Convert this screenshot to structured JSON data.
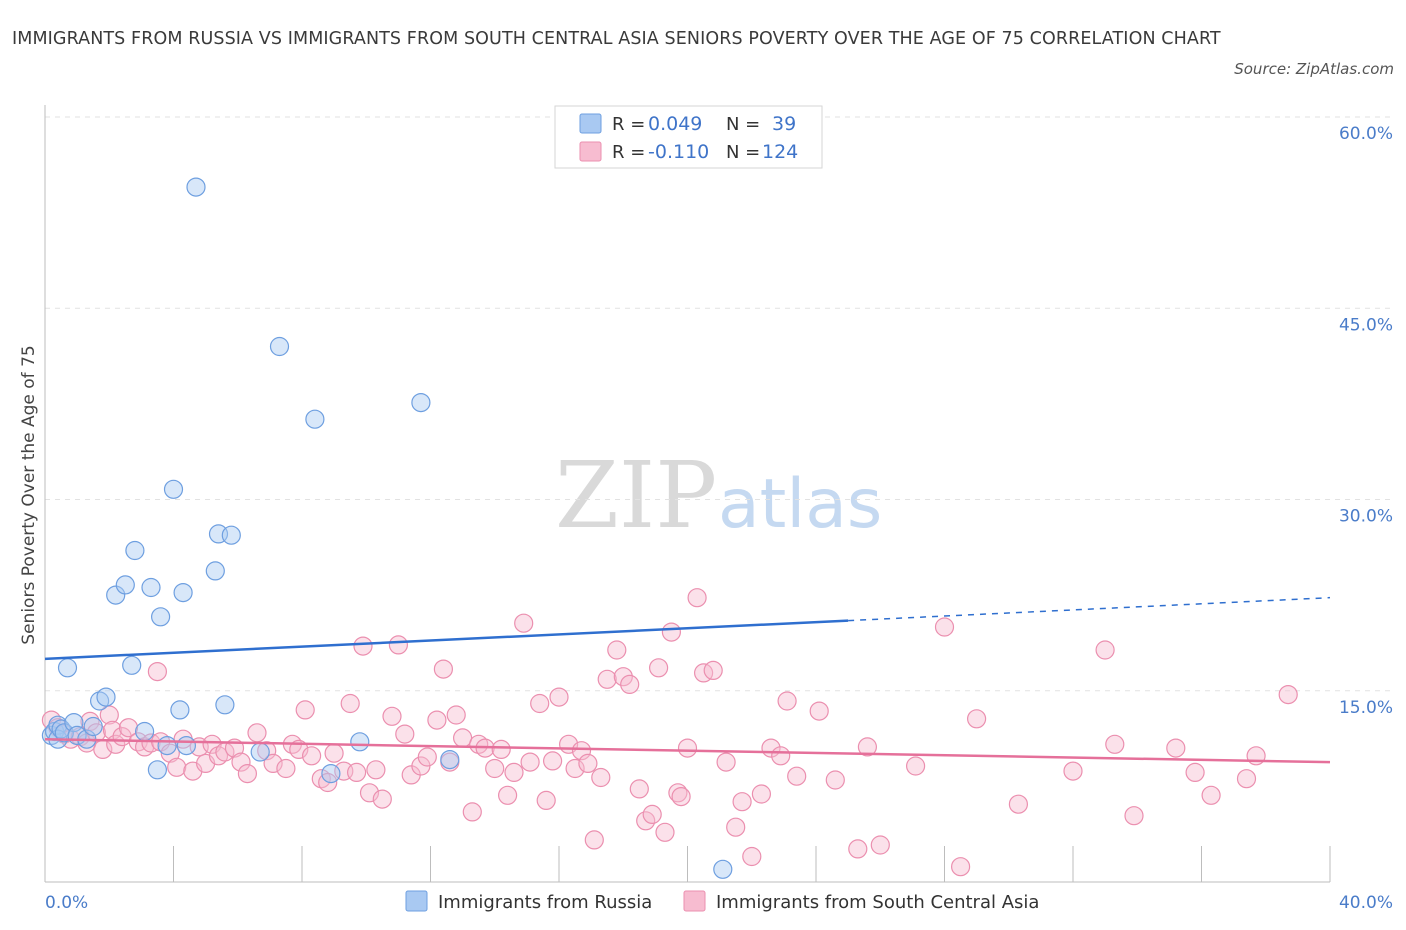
{
  "header": {
    "title": "IMMIGRANTS FROM RUSSIA VS IMMIGRANTS FROM SOUTH CENTRAL ASIA SENIORS POVERTY OVER THE AGE OF 75 CORRELATION CHART",
    "source": "Source: ZipAtlas.com"
  },
  "watermark": {
    "zip": "ZIP",
    "atlas": "atlas"
  },
  "legend": {
    "r_label": "R =",
    "n_label": "N =",
    "rows": [
      {
        "r": "0.049",
        "n": "39",
        "color": "#a9c9f2"
      },
      {
        "r": "-0.110",
        "n": "124",
        "color": "#f7bcd0"
      }
    ]
  },
  "colors": {
    "blue_fill": "#a9c9f2",
    "blue_stroke": "#6e9fe0",
    "blue_line": "#2f6fcf",
    "pink_fill": "#f7bcd0",
    "pink_stroke": "#eb8faf",
    "pink_line": "#e5709a"
  },
  "chart_data": {
    "type": "scatter",
    "title": "IMMIGRANTS FROM RUSSIA VS IMMIGRANTS FROM SOUTH CENTRAL ASIA SENIORS POVERTY OVER THE AGE OF 75 CORRELATION CHART",
    "xlabel": "",
    "ylabel": "Seniors Poverty Over the Age of 75",
    "xlim": [
      0,
      40
    ],
    "ylim": [
      0,
      60
    ],
    "x_tick_labels": [
      "0.0%",
      "40.0%"
    ],
    "y_tick_labels": [
      "15.0%",
      "30.0%",
      "45.0%",
      "60.0%"
    ],
    "y_ticks": [
      15,
      30,
      45,
      60
    ],
    "grid": true,
    "legend_position": "top-center",
    "series": [
      {
        "name": "Immigrants from Russia",
        "points": [
          [
            0.2,
            11.5
          ],
          [
            0.3,
            11.8
          ],
          [
            0.4,
            12.3
          ],
          [
            0.4,
            11.2
          ],
          [
            0.5,
            12.0
          ],
          [
            0.6,
            11.7
          ],
          [
            0.7,
            16.8
          ],
          [
            0.9,
            12.5
          ],
          [
            1.0,
            11.5
          ],
          [
            1.3,
            11.2
          ],
          [
            1.5,
            12.2
          ],
          [
            1.7,
            14.2
          ],
          [
            1.9,
            14.5
          ],
          [
            2.2,
            22.5
          ],
          [
            2.5,
            23.3
          ],
          [
            2.7,
            17.0
          ],
          [
            2.8,
            26.0
          ],
          [
            3.1,
            11.8
          ],
          [
            3.3,
            23.1
          ],
          [
            3.5,
            8.8
          ],
          [
            3.6,
            20.8
          ],
          [
            3.8,
            10.7
          ],
          [
            4.0,
            30.8
          ],
          [
            4.2,
            13.5
          ],
          [
            4.3,
            22.7
          ],
          [
            4.4,
            10.7
          ],
          [
            4.7,
            54.5
          ],
          [
            5.3,
            24.4
          ],
          [
            5.4,
            27.3
          ],
          [
            5.6,
            13.9
          ],
          [
            5.8,
            27.2
          ],
          [
            6.7,
            10.2
          ],
          [
            7.3,
            42.0
          ],
          [
            8.4,
            36.3
          ],
          [
            8.9,
            8.5
          ],
          [
            9.8,
            11.0
          ],
          [
            11.7,
            37.6
          ],
          [
            12.6,
            9.6
          ],
          [
            21.1,
            1.0
          ]
        ],
        "trend": {
          "x": [
            0,
            40
          ],
          "y": [
            17.5,
            22.3
          ]
        }
      },
      {
        "name": "Immigrants from South Central Asia",
        "points": [
          [
            0.2,
            12.7
          ],
          [
            0.4,
            12.1
          ],
          [
            0.6,
            11.6
          ],
          [
            0.8,
            11.2
          ],
          [
            1.1,
            11.4
          ],
          [
            1.3,
            10.9
          ],
          [
            1.4,
            12.6
          ],
          [
            1.6,
            11.7
          ],
          [
            1.8,
            10.4
          ],
          [
            2.0,
            13.1
          ],
          [
            2.1,
            11.9
          ],
          [
            2.2,
            10.8
          ],
          [
            2.4,
            11.4
          ],
          [
            2.6,
            12.1
          ],
          [
            2.9,
            11.0
          ],
          [
            3.1,
            10.6
          ],
          [
            3.3,
            10.9
          ],
          [
            3.5,
            16.5
          ],
          [
            3.6,
            11.0
          ],
          [
            3.9,
            10.1
          ],
          [
            4.1,
            9.0
          ],
          [
            4.3,
            11.2
          ],
          [
            4.6,
            8.7
          ],
          [
            4.8,
            10.6
          ],
          [
            5.0,
            9.3
          ],
          [
            5.2,
            10.8
          ],
          [
            5.4,
            9.9
          ],
          [
            5.6,
            10.2
          ],
          [
            5.9,
            10.5
          ],
          [
            6.1,
            9.4
          ],
          [
            6.3,
            8.5
          ],
          [
            6.6,
            11.7
          ],
          [
            6.9,
            10.3
          ],
          [
            7.1,
            9.3
          ],
          [
            7.5,
            8.9
          ],
          [
            7.7,
            10.8
          ],
          [
            7.9,
            10.4
          ],
          [
            8.1,
            13.5
          ],
          [
            8.3,
            9.9
          ],
          [
            8.6,
            8.1
          ],
          [
            8.8,
            7.8
          ],
          [
            9.0,
            10.1
          ],
          [
            9.3,
            8.7
          ],
          [
            9.5,
            14.0
          ],
          [
            9.7,
            8.6
          ],
          [
            9.9,
            18.5
          ],
          [
            10.1,
            7.0
          ],
          [
            10.3,
            8.8
          ],
          [
            10.5,
            6.5
          ],
          [
            10.8,
            13.0
          ],
          [
            11.0,
            18.6
          ],
          [
            11.2,
            11.6
          ],
          [
            11.4,
            8.4
          ],
          [
            11.7,
            9.1
          ],
          [
            11.9,
            9.8
          ],
          [
            12.2,
            12.7
          ],
          [
            12.4,
            16.7
          ],
          [
            12.6,
            9.4
          ],
          [
            12.8,
            13.1
          ],
          [
            13.0,
            11.3
          ],
          [
            13.3,
            5.5
          ],
          [
            13.5,
            10.8
          ],
          [
            13.7,
            10.5
          ],
          [
            14.0,
            8.9
          ],
          [
            14.2,
            10.4
          ],
          [
            14.4,
            6.8
          ],
          [
            14.6,
            8.6
          ],
          [
            14.9,
            20.3
          ],
          [
            15.1,
            9.4
          ],
          [
            15.4,
            14.0
          ],
          [
            15.6,
            6.4
          ],
          [
            15.8,
            9.5
          ],
          [
            16.0,
            14.5
          ],
          [
            16.3,
            10.8
          ],
          [
            16.5,
            8.9
          ],
          [
            16.7,
            10.3
          ],
          [
            16.9,
            9.3
          ],
          [
            17.1,
            3.3
          ],
          [
            17.3,
            8.2
          ],
          [
            17.5,
            15.9
          ],
          [
            17.8,
            18.2
          ],
          [
            18.0,
            16.1
          ],
          [
            18.2,
            15.5
          ],
          [
            18.5,
            7.3
          ],
          [
            18.7,
            4.8
          ],
          [
            18.9,
            5.3
          ],
          [
            19.1,
            16.8
          ],
          [
            19.3,
            3.9
          ],
          [
            19.5,
            19.6
          ],
          [
            19.7,
            7.0
          ],
          [
            19.8,
            6.7
          ],
          [
            20.0,
            10.5
          ],
          [
            20.3,
            22.3
          ],
          [
            20.5,
            16.4
          ],
          [
            20.8,
            16.6
          ],
          [
            21.2,
            9.4
          ],
          [
            21.5,
            4.3
          ],
          [
            21.7,
            6.3
          ],
          [
            22.0,
            2.0
          ],
          [
            22.3,
            6.9
          ],
          [
            22.6,
            10.5
          ],
          [
            22.9,
            9.9
          ],
          [
            23.1,
            14.2
          ],
          [
            23.4,
            8.3
          ],
          [
            24.1,
            13.4
          ],
          [
            24.6,
            8.0
          ],
          [
            25.3,
            2.6
          ],
          [
            25.6,
            10.6
          ],
          [
            26.0,
            2.9
          ],
          [
            27.1,
            9.1
          ],
          [
            28.0,
            20.0
          ],
          [
            28.5,
            1.2
          ],
          [
            29.0,
            12.8
          ],
          [
            30.3,
            6.1
          ],
          [
            32.0,
            8.7
          ],
          [
            33.0,
            18.2
          ],
          [
            33.3,
            10.8
          ],
          [
            33.9,
            5.2
          ],
          [
            35.2,
            10.5
          ],
          [
            35.8,
            8.6
          ],
          [
            36.3,
            6.8
          ],
          [
            37.4,
            8.1
          ],
          [
            37.7,
            9.9
          ],
          [
            38.7,
            14.7
          ]
        ],
        "trend": {
          "x": [
            0,
            40
          ],
          "y": [
            11.2,
            9.4
          ]
        }
      }
    ]
  }
}
